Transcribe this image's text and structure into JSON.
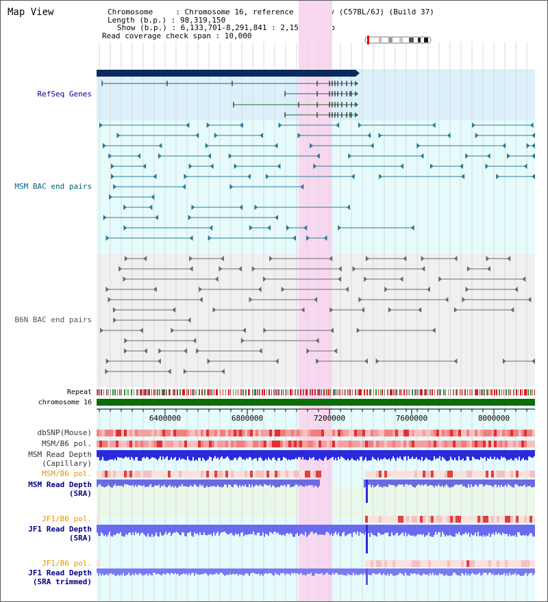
{
  "window": {
    "title": "Map View"
  },
  "info": {
    "lines": [
      "Chromosome     : Chromosome 16, reference assembly (C57BL/6J) (Build 37)",
      "Length (b.p.) : 98,319,150",
      "Show (b.p.) : 6,133,701-8,291,841 : 2,158,141 bp",
      "Read coverage check span : 10,000"
    ]
  },
  "tracks": {
    "refseq": "RefSeq Genes",
    "msm_bac": "MSM BAC end pairs",
    "b6n_bac": "B6N BAC end pairs",
    "repeat": "Repeat",
    "chromosome": "chromosome 16",
    "dbsnp": "dbSNP(Mouse)",
    "msm_pol": "MSM/B6 pol.",
    "msm_depth_cap_1": "MSM Read Depth",
    "msm_depth_cap_2": "(Capillary)",
    "msm_pol_sra": "MSM/B6 pol.",
    "msm_depth_sra_1": "MSM Read Depth",
    "msm_depth_sra_2": "(SRA)",
    "jf1_pol": "JF1/B6 pol.",
    "jf1_depth_1": "JF1 Read Depth",
    "jf1_depth_2": "(SRA)",
    "jf1_pol_trim": "JF1/B6 pol.",
    "jf1_trim_1": "JF1 Read Depth",
    "jf1_trim_2": "(SRA trimmed)"
  },
  "axis": {
    "ticks": [
      "6400000",
      "6800000",
      "7200000",
      "7600000",
      "8000000"
    ]
  },
  "colors": {
    "refseq_bg": "#dcf0fb",
    "msm_bg": "#e6fbfb",
    "b6n_bg": "#f0f0f0",
    "highlight": "#f8d8f0",
    "chromosome": "#0b6e0b",
    "depth_blue": "#2a2adc",
    "label_blue": "#00008b",
    "label_teal": "#005f7f",
    "label_orange": "#e69500"
  }
}
